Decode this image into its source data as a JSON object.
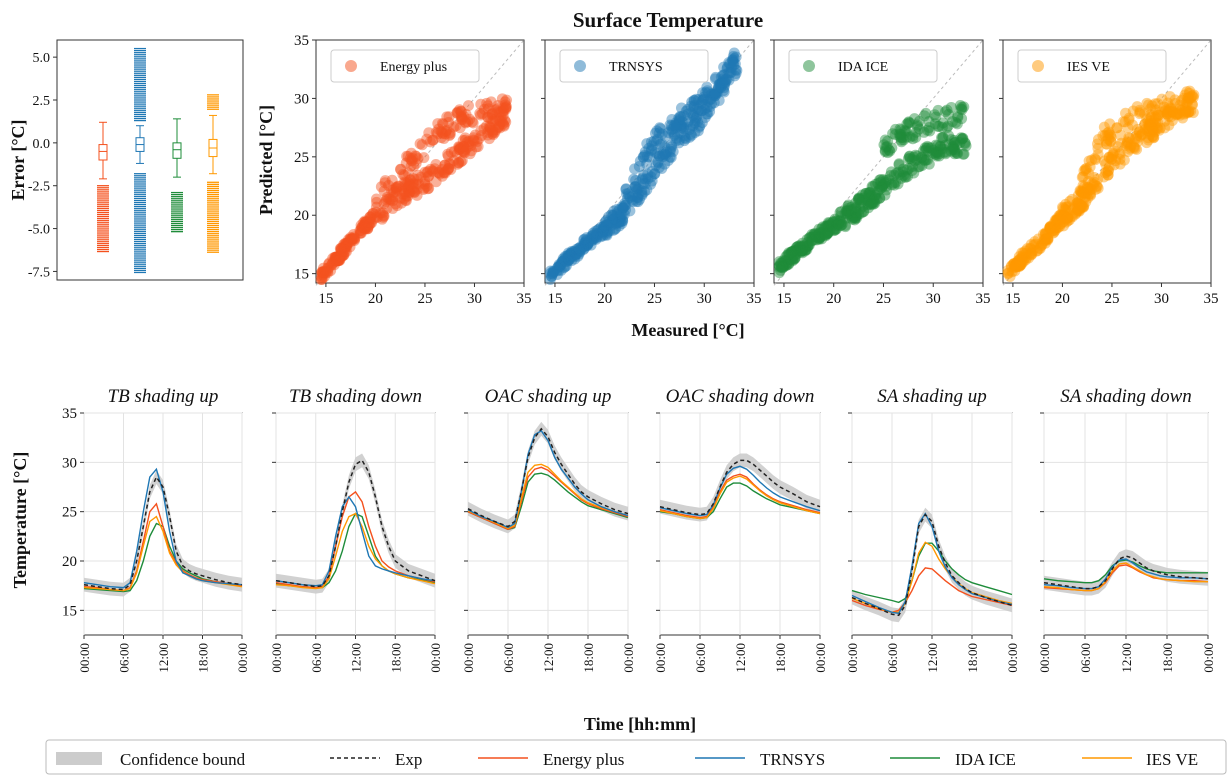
{
  "figure": {
    "title": "Surface Temperature",
    "scatter_xlabel": "Measured [°C]",
    "scatter_ylabel": "Predicted [°C]",
    "box_ylabel": "Error [°C]",
    "time_xlabel": "Time [hh:mm]",
    "time_ylabel": "Temperature [°C]"
  },
  "colors": {
    "energy_plus": "#f4511e",
    "trnsys": "#1f77b4",
    "ida_ice": "#1e8c3a",
    "ies_ve": "#ff9800",
    "exp": "#222222",
    "confidence": "#cccccc"
  },
  "legend": {
    "confidence": "Confidence bound",
    "exp": "Exp",
    "energy_plus": "Energy plus",
    "trnsys": "TRNSYS",
    "ida_ice": "IDA ICE",
    "ies_ve": "IES VE"
  },
  "chart_data": [
    {
      "type": "box",
      "ylabel": "Error [°C]",
      "ylim": [
        -8,
        6
      ],
      "yticks": [
        -7.5,
        -5.0,
        -2.5,
        0.0,
        2.5,
        5.0
      ],
      "series": [
        {
          "key": "energy_plus",
          "q1": -1.0,
          "median": -0.5,
          "q3": -0.1,
          "whisker_low": -2.1,
          "whisker_high": 1.2,
          "outliers_low": [
            -2.5,
            -6.4
          ],
          "outliers_high": []
        },
        {
          "key": "trnsys",
          "q1": -0.5,
          "median": -0.1,
          "q3": 0.3,
          "whisker_low": -1.2,
          "whisker_high": 1.0,
          "outliers_low": [
            -1.8,
            -7.6
          ],
          "outliers_high": [
            1.2,
            5.5
          ]
        },
        {
          "key": "ida_ice",
          "q1": -0.9,
          "median": -0.4,
          "q3": 0.0,
          "whisker_low": -2.0,
          "whisker_high": 1.4,
          "outliers_low": [
            -2.9,
            -5.2
          ],
          "outliers_high": []
        },
        {
          "key": "ies_ve",
          "q1": -0.8,
          "median": -0.3,
          "q3": 0.2,
          "whisker_low": -1.8,
          "whisker_high": 1.6,
          "outliers_low": [
            -2.3,
            -6.4
          ],
          "outliers_high": [
            1.9,
            2.8
          ]
        }
      ]
    },
    {
      "type": "scatter",
      "xlabel": "Measured [°C]",
      "ylabel": "Predicted [°C]",
      "xlim": [
        14,
        35
      ],
      "ylim": [
        14.2,
        35
      ],
      "xticks": [
        15,
        20,
        25,
        30,
        35
      ],
      "yticks": [
        15,
        20,
        25,
        30,
        35
      ],
      "diagonal": true,
      "series": [
        {
          "name": "Energy plus",
          "key": "energy_plus",
          "trend": [
            [
              14.5,
              14.8
            ],
            [
              16,
              16.2
            ],
            [
              18,
              18.2
            ],
            [
              20,
              20.0
            ],
            [
              22,
              21.6
            ],
            [
              24,
              22.4
            ],
            [
              26,
              23.5
            ],
            [
              28,
              25.0
            ],
            [
              30,
              26.4
            ],
            [
              33,
              28.4
            ]
          ],
          "upper": [
            [
              20,
              21.2
            ],
            [
              22,
              23.0
            ],
            [
              24,
              25.0
            ],
            [
              26,
              26.8
            ],
            [
              28,
              28.0
            ],
            [
              30,
              28.8
            ],
            [
              33,
              29.2
            ]
          ]
        },
        {
          "name": "TRNSYS",
          "key": "trnsys",
          "trend": [
            [
              14.5,
              14.7
            ],
            [
              16,
              16.0
            ],
            [
              18,
              17.5
            ],
            [
              20,
              18.8
            ],
            [
              22,
              20.3
            ],
            [
              24,
              22.8
            ],
            [
              26,
              25.2
            ],
            [
              28,
              27.0
            ],
            [
              30,
              28.6
            ],
            [
              33,
              32.8
            ]
          ],
          "upper": [
            [
              22,
              21.8
            ],
            [
              24,
              25.0
            ],
            [
              26,
              27.2
            ],
            [
              28,
              28.7
            ],
            [
              30,
              29.8
            ],
            [
              33,
              33.0
            ]
          ]
        },
        {
          "name": "IDA ICE",
          "key": "ida_ice",
          "trend": [
            [
              14.5,
              15.5
            ],
            [
              16,
              16.7
            ],
            [
              18,
              18.0
            ],
            [
              20,
              19.2
            ],
            [
              22,
              20.4
            ],
            [
              24,
              21.8
            ],
            [
              26,
              23.2
            ],
            [
              28,
              24.4
            ],
            [
              30,
              25.4
            ],
            [
              31,
              26.0
            ]
          ],
          "upper": [
            [
              25,
              26.0
            ],
            [
              27,
              27.0
            ],
            [
              29,
              27.8
            ],
            [
              31,
              28.3
            ],
            [
              33,
              28.8
            ]
          ]
        },
        {
          "name": "IES VE",
          "key": "ies_ve",
          "trend": [
            [
              14.5,
              14.8
            ],
            [
              16,
              16.4
            ],
            [
              18,
              17.8
            ],
            [
              20,
              19.8
            ],
            [
              22,
              21.4
            ],
            [
              24,
              23.6
            ],
            [
              26,
              25.4
            ],
            [
              28,
              26.8
            ],
            [
              30,
              28.0
            ],
            [
              33,
              29.6
            ]
          ],
          "upper": [
            [
              22,
              22.6
            ],
            [
              24,
              26.5
            ],
            [
              26,
              27.8
            ],
            [
              28,
              28.6
            ],
            [
              30,
              29.2
            ],
            [
              33,
              29.8
            ]
          ]
        }
      ]
    },
    {
      "type": "line",
      "ylabel": "Temperature [°C]",
      "xlabel": "Time [hh:mm]",
      "xlim": [
        0,
        24
      ],
      "ylim": [
        12.5,
        35
      ],
      "xticks": [
        0,
        6,
        12,
        18,
        24
      ],
      "xtick_labels": [
        "00:00",
        "06:00",
        "12:00",
        "18:00",
        "00:00"
      ],
      "yticks": [
        15,
        20,
        25,
        30,
        35
      ],
      "x": [
        0,
        2,
        4,
        6,
        7,
        8,
        9,
        10,
        11,
        12,
        13,
        14,
        15,
        16,
        17,
        18,
        20,
        22,
        24
      ],
      "panels": [
        {
          "title": "TB shading up",
          "exp": [
            17.6,
            17.4,
            17.2,
            17.1,
            17.6,
            20.0,
            23.5,
            27.0,
            28.5,
            27.5,
            24.5,
            21.0,
            19.5,
            19.0,
            18.7,
            18.5,
            18.1,
            17.8,
            17.6
          ],
          "energy_plus": [
            17.4,
            17.3,
            17.1,
            17.0,
            17.3,
            19.0,
            22.0,
            25.0,
            25.8,
            23.5,
            21.0,
            19.8,
            19.0,
            18.6,
            18.3,
            18.1,
            17.9,
            17.7,
            17.5
          ],
          "trnsys": [
            17.8,
            17.6,
            17.4,
            17.3,
            17.8,
            21.0,
            25.0,
            28.5,
            29.3,
            27.0,
            23.0,
            20.0,
            18.8,
            18.5,
            18.2,
            18.0,
            17.8,
            17.7,
            17.6
          ],
          "ida_ice": [
            17.2,
            17.1,
            17.0,
            16.9,
            17.0,
            18.0,
            20.0,
            22.5,
            23.8,
            23.5,
            21.5,
            20.0,
            19.2,
            18.8,
            18.5,
            18.2,
            17.9,
            17.7,
            17.5
          ],
          "ies_ve": [
            17.3,
            17.2,
            17.1,
            17.0,
            17.2,
            18.8,
            21.5,
            24.0,
            24.5,
            23.0,
            20.8,
            19.6,
            18.9,
            18.5,
            18.2,
            18.0,
            17.8,
            17.6,
            17.4
          ]
        },
        {
          "title": "TB shading down",
          "exp": [
            18.0,
            17.8,
            17.6,
            17.4,
            17.5,
            18.5,
            21.5,
            25.0,
            28.0,
            29.8,
            30.2,
            29.0,
            26.5,
            23.5,
            21.5,
            20.0,
            19.0,
            18.5,
            18.0
          ],
          "energy_plus": [
            17.8,
            17.6,
            17.4,
            17.3,
            17.4,
            18.5,
            21.5,
            24.5,
            26.5,
            27.0,
            26.0,
            23.5,
            21.5,
            20.0,
            19.4,
            19.0,
            18.5,
            18.2,
            17.9
          ],
          "trnsys": [
            18.0,
            17.8,
            17.6,
            17.5,
            17.6,
            19.0,
            22.5,
            25.5,
            26.5,
            25.5,
            23.0,
            20.5,
            19.5,
            19.2,
            19.0,
            18.8,
            18.5,
            18.2,
            18.0
          ],
          "ida_ice": [
            17.7,
            17.5,
            17.4,
            17.3,
            17.3,
            17.8,
            19.0,
            21.0,
            23.5,
            24.8,
            24.5,
            22.5,
            20.5,
            19.5,
            19.0,
            18.7,
            18.3,
            18.1,
            17.8
          ],
          "ies_ve": [
            17.6,
            17.5,
            17.3,
            17.2,
            17.3,
            18.2,
            20.5,
            23.0,
            24.5,
            24.8,
            23.5,
            21.5,
            20.2,
            19.5,
            19.0,
            18.7,
            18.3,
            18.0,
            17.7
          ]
        },
        {
          "title": "OAC shading up",
          "exp": [
            25.3,
            24.6,
            24.0,
            23.5,
            24.0,
            27.0,
            30.5,
            32.5,
            33.4,
            32.6,
            31.0,
            29.8,
            28.8,
            27.8,
            27.0,
            26.5,
            25.8,
            25.2,
            24.8
          ],
          "energy_plus": [
            25.0,
            24.4,
            23.8,
            23.2,
            23.5,
            26.0,
            28.5,
            29.3,
            29.5,
            29.2,
            28.6,
            28.0,
            27.4,
            26.8,
            26.2,
            25.8,
            25.3,
            24.9,
            24.5
          ],
          "trnsys": [
            25.2,
            24.5,
            24.0,
            23.4,
            23.8,
            27.0,
            30.8,
            32.8,
            33.2,
            32.2,
            30.5,
            29.3,
            28.4,
            27.5,
            26.8,
            26.2,
            25.5,
            25.0,
            24.6
          ],
          "ida_ice": [
            25.0,
            24.4,
            23.8,
            23.2,
            23.4,
            25.5,
            28.0,
            28.8,
            28.9,
            28.7,
            28.2,
            27.6,
            27.0,
            26.5,
            26.0,
            25.6,
            25.2,
            24.8,
            24.4
          ],
          "ies_ve": [
            25.1,
            24.5,
            23.9,
            23.3,
            23.6,
            26.3,
            29.0,
            29.7,
            29.8,
            29.5,
            28.8,
            28.1,
            27.5,
            26.9,
            26.3,
            25.9,
            25.4,
            25.0,
            24.6
          ]
        },
        {
          "title": "OAC shading down",
          "exp": [
            25.5,
            25.2,
            24.9,
            24.7,
            24.8,
            25.8,
            27.5,
            29.0,
            29.8,
            30.2,
            30.2,
            29.8,
            29.2,
            28.6,
            28.0,
            27.5,
            26.8,
            26.0,
            25.5
          ],
          "energy_plus": [
            25.2,
            24.9,
            24.6,
            24.4,
            24.5,
            25.5,
            27.0,
            28.2,
            28.6,
            28.8,
            28.5,
            27.8,
            27.2,
            26.7,
            26.3,
            26.0,
            25.6,
            25.2,
            24.9
          ],
          "trnsys": [
            25.4,
            25.1,
            24.8,
            24.6,
            24.7,
            25.7,
            27.4,
            28.8,
            29.4,
            29.6,
            29.3,
            28.7,
            28.0,
            27.4,
            26.9,
            26.5,
            26.0,
            25.5,
            25.1
          ],
          "ida_ice": [
            25.0,
            24.8,
            24.5,
            24.3,
            24.4,
            25.0,
            26.3,
            27.5,
            27.9,
            27.9,
            27.6,
            27.1,
            26.7,
            26.3,
            26.0,
            25.7,
            25.4,
            25.1,
            24.8
          ],
          "ies_ve": [
            25.1,
            24.8,
            24.5,
            24.3,
            24.4,
            25.3,
            26.8,
            28.0,
            28.4,
            28.6,
            28.3,
            27.7,
            27.1,
            26.6,
            26.2,
            25.9,
            25.5,
            25.1,
            24.8
          ]
        },
        {
          "title": "SA shading up",
          "exp": [
            16.3,
            15.7,
            15.2,
            14.6,
            14.5,
            15.5,
            19.0,
            23.5,
            24.7,
            24.0,
            21.5,
            19.8,
            18.5,
            17.8,
            17.2,
            16.8,
            16.3,
            15.9,
            15.5
          ],
          "energy_plus": [
            16.0,
            15.5,
            15.1,
            14.8,
            15.0,
            15.8,
            17.0,
            18.5,
            19.3,
            19.2,
            18.6,
            18.0,
            17.5,
            17.0,
            16.7,
            16.4,
            16.1,
            15.8,
            15.5
          ],
          "trnsys": [
            16.5,
            15.9,
            15.3,
            14.8,
            14.7,
            15.9,
            19.5,
            23.8,
            24.8,
            23.5,
            21.0,
            19.4,
            18.3,
            17.6,
            17.1,
            16.7,
            16.3,
            15.9,
            15.6
          ],
          "ida_ice": [
            17.0,
            16.6,
            16.3,
            16.0,
            15.8,
            16.2,
            18.0,
            20.5,
            21.8,
            21.8,
            21.0,
            20.0,
            19.2,
            18.6,
            18.1,
            17.8,
            17.4,
            17.0,
            16.6
          ],
          "ies_ve": [
            16.2,
            15.7,
            15.2,
            14.8,
            14.8,
            15.7,
            18.0,
            20.8,
            21.9,
            21.5,
            20.2,
            19.2,
            18.4,
            17.7,
            17.2,
            16.8,
            16.4,
            16.0,
            15.7
          ]
        },
        {
          "title": "SA shading down",
          "exp": [
            17.8,
            17.6,
            17.4,
            17.2,
            17.2,
            17.4,
            18.0,
            19.2,
            20.2,
            20.5,
            20.3,
            19.8,
            19.3,
            19.0,
            18.8,
            18.6,
            18.4,
            18.3,
            18.2
          ],
          "energy_plus": [
            17.3,
            17.2,
            17.1,
            17.0,
            17.0,
            17.2,
            17.8,
            18.8,
            19.5,
            19.6,
            19.3,
            18.9,
            18.6,
            18.3,
            18.2,
            18.1,
            18.0,
            18.0,
            17.9
          ],
          "trnsys": [
            17.6,
            17.5,
            17.3,
            17.2,
            17.2,
            17.4,
            18.2,
            19.4,
            20.1,
            20.2,
            19.8,
            19.3,
            18.9,
            18.7,
            18.5,
            18.4,
            18.3,
            18.3,
            18.2
          ],
          "ida_ice": [
            18.2,
            18.0,
            17.9,
            17.8,
            17.8,
            18.0,
            18.6,
            19.5,
            20.0,
            20.1,
            19.9,
            19.5,
            19.2,
            19.0,
            18.9,
            18.8,
            18.8,
            18.8,
            18.8
          ],
          "ies_ve": [
            17.4,
            17.3,
            17.1,
            17.0,
            17.0,
            17.2,
            17.9,
            19.0,
            19.7,
            19.8,
            19.4,
            19.0,
            18.6,
            18.4,
            18.2,
            18.1,
            18.0,
            17.9,
            17.9
          ]
        }
      ]
    }
  ]
}
